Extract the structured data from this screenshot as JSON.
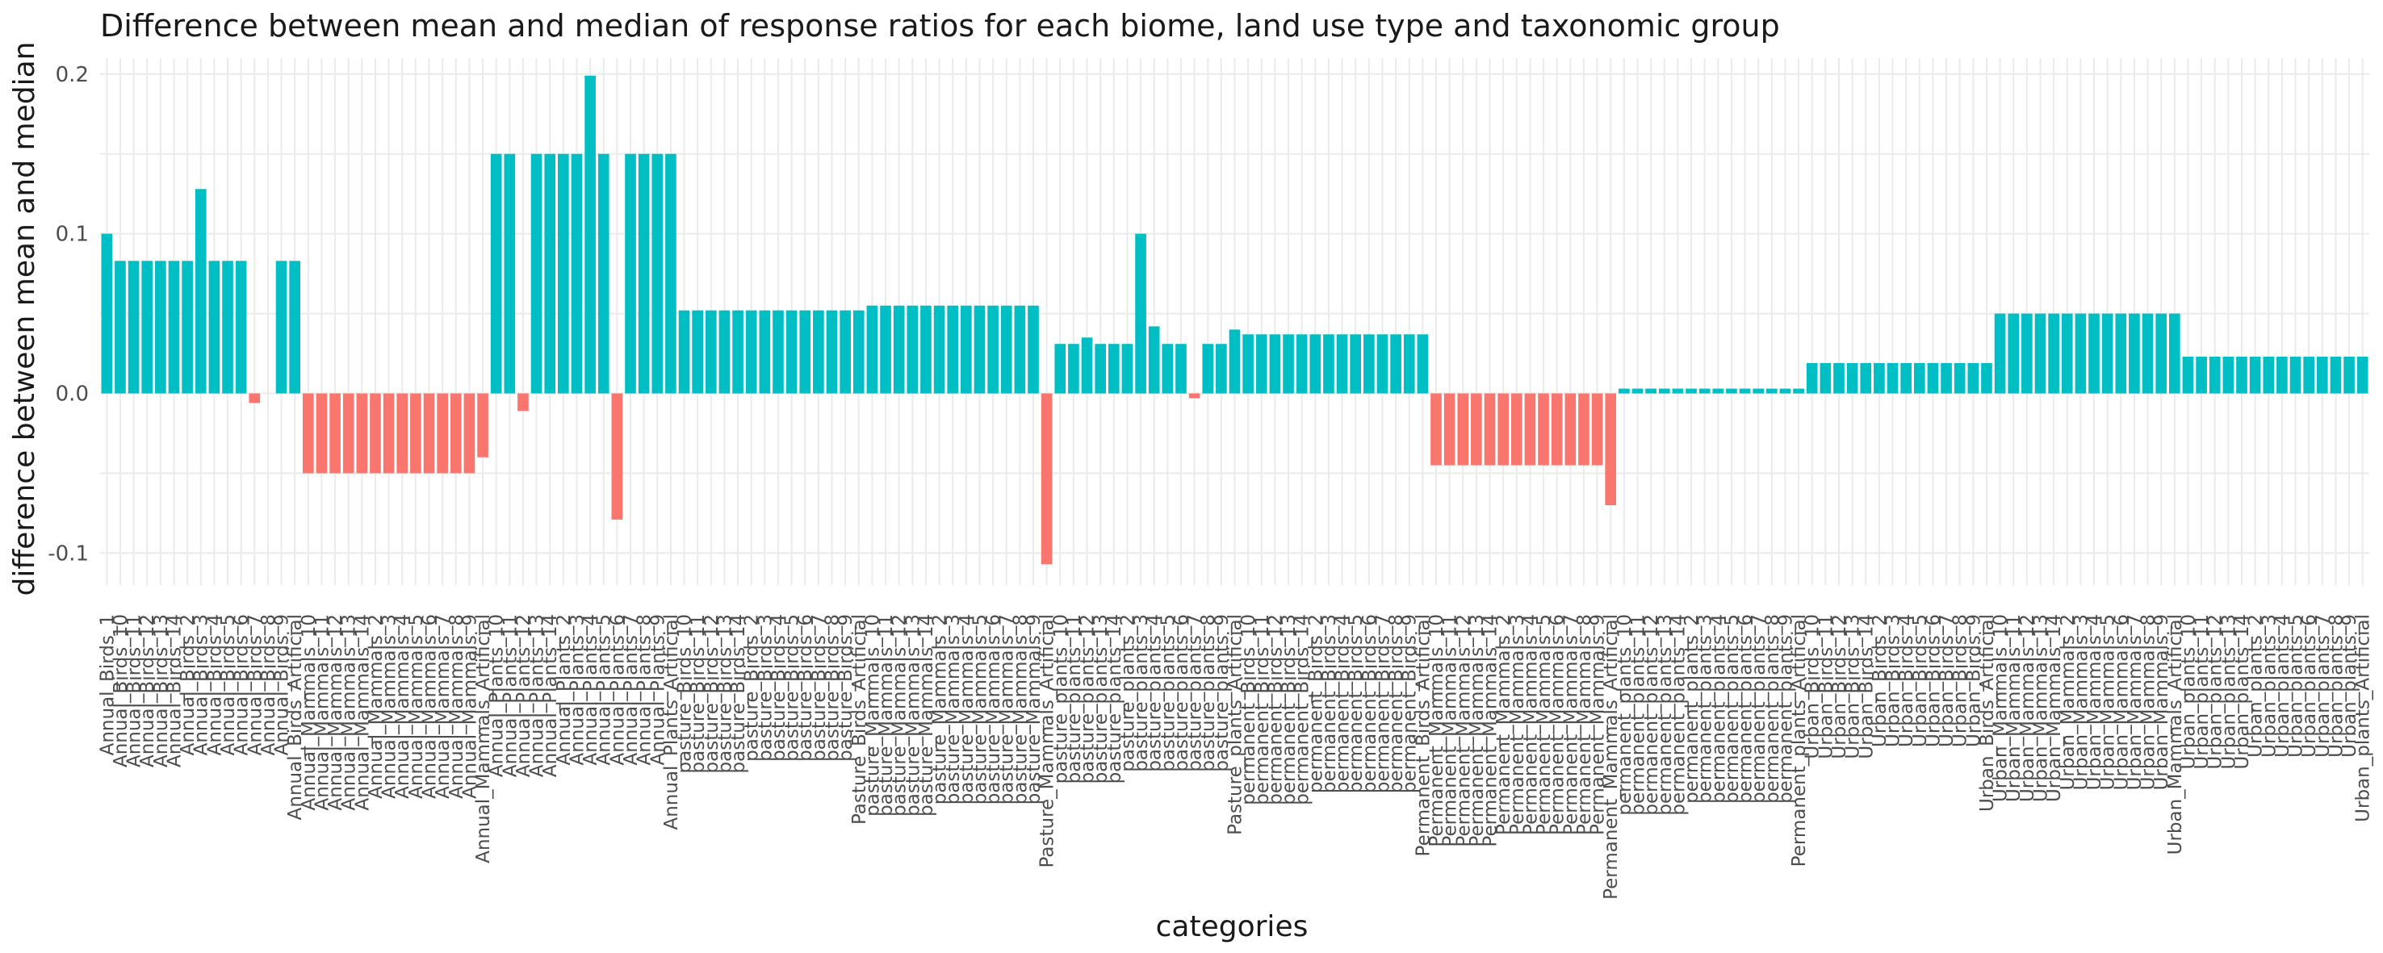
{
  "chart_data": {
    "type": "bar",
    "title": "Difference between mean and median of response ratios for each biome, land use type and taxonomic group",
    "xlabel": "categories",
    "ylabel": "difference between mean and median",
    "ylim": [
      -0.12,
      0.21
    ],
    "yticks": [
      -0.1,
      0.0,
      0.1,
      0.2
    ],
    "ytick_labels": [
      "-0.1",
      "0.0",
      "0.1",
      "0.2"
    ],
    "grid": true,
    "legend": "none",
    "colors": {
      "positive": "#00BFC4",
      "negative": "#F8766D"
    },
    "categories": [
      "Annual_Birds_1",
      "Annual_Birds_10",
      "Annual_Birds_11",
      "Annual_Birds_12",
      "Annual_Birds_13",
      "Annual_Birds_14",
      "Annual_Birds_2",
      "Annual_Birds_3",
      "Annual_Birds_4",
      "Annual_Birds_5",
      "Annual_Birds_6",
      "Annual_Birds_7",
      "Annual_Birds_8",
      "Annual_Birds_9",
      "Annual_Birds_Artificial",
      "Annual_Mammals_10",
      "Annual_Mammals_11",
      "Annual_Mammals_12",
      "Annual_Mammals_13",
      "Annual_Mammals_14",
      "Annual_Mammals_2",
      "Annual_Mammals_3",
      "Annual_Mammals_4",
      "Annual_Mammals_5",
      "Annual_Mammals_6",
      "Annual_Mammals_7",
      "Annual_Mammals_8",
      "Annual_Mammals_9",
      "Annual_Mammals_Artificial",
      "Annual_Plants_10",
      "Annual_Plants_11",
      "Annual_Plants_12",
      "Annual_Plants_13",
      "Annual_Plants_14",
      "Annual_Plants_2",
      "Annual_Plants_3",
      "Annual_Plants_4",
      "Annual_Plants_5",
      "Annual_Plants_6",
      "Annual_Plants_7",
      "Annual_Plants_8",
      "Annual_Plants_9",
      "Annual_Plants_Artificial",
      "pasture_Birds_10",
      "pasture_Birds_11",
      "pasture_Birds_12",
      "pasture_Birds_13",
      "pasture_Birds_14",
      "pasture_Birds_2",
      "pasture_Birds_3",
      "pasture_Birds_4",
      "pasture_Birds_5",
      "pasture_Birds_6",
      "pasture_Birds_7",
      "pasture_Birds_8",
      "pasture_Birds_9",
      "Pasture_Birds_Artificial",
      "pasture_Mammals_10",
      "pasture_Mammals_11",
      "pasture_Mammals_12",
      "pasture_Mammals_13",
      "pasture_Mammals_14",
      "pasture_Mammals_2",
      "pasture_Mammals_3",
      "pasture_Mammals_4",
      "pasture_Mammals_5",
      "pasture_Mammals_6",
      "pasture_Mammals_7",
      "pasture_Mammals_8",
      "pasture_Mammals_9",
      "Pasture_Mammals_Artificial",
      "pasture_plants_10",
      "pasture_plants_11",
      "pasture_plants_12",
      "pasture_plants_13",
      "pasture_plants_14",
      "pasture_plants_2",
      "pasture_plants_3",
      "pasture_plants_4",
      "pasture_plants_5",
      "pasture_plants_6",
      "pasture_plants_7",
      "pasture_plants_8",
      "pasture_plants_9",
      "Pasture_plants_Artificial",
      "permanent_Birds_10",
      "permanent_Birds_11",
      "permanent_Birds_12",
      "permanent_Birds_13",
      "permanent_Birds_14",
      "permanent_Birds_2",
      "permanent_Birds_3",
      "permanent_Birds_4",
      "permanent_Birds_5",
      "permanent_Birds_6",
      "permanent_Birds_7",
      "permanent_Birds_8",
      "permanent_Birds_9",
      "Permanent_Birds_Artificial",
      "Permanent_Mammals_10",
      "Permanent_Mammals_11",
      "Permanent_Mammals_12",
      "Permanent_Mammals_13",
      "Permanent_Mammals_14",
      "Permanent_Mammals_2",
      "Permanent_Mammals_3",
      "Permanent_Mammals_4",
      "Permanent_Mammals_5",
      "Permanent_Mammals_6",
      "Permanent_Mammals_7",
      "Permanent_Mammals_8",
      "Permanent_Mammals_9",
      "Permanent_Mammals_Artificial",
      "permanent_plants_10",
      "permanent_plants_11",
      "permanent_plants_12",
      "permanent_plants_13",
      "permanent_plants_14",
      "permanent_plants_2",
      "permanent_plants_3",
      "permanent_plants_4",
      "permanent_plants_5",
      "permanent_plants_6",
      "permanent_plants_7",
      "permanent_plants_8",
      "permanent_plants_9",
      "Permanent_plants_Artificial",
      "Urban_Birds_10",
      "Urban_Birds_11",
      "Urban_Birds_12",
      "Urban_Birds_13",
      "Urban_Birds_14",
      "Urban_Birds_2",
      "Urban_Birds_3",
      "Urban_Birds_4",
      "Urban_Birds_5",
      "Urban_Birds_6",
      "Urban_Birds_7",
      "Urban_Birds_8",
      "Urban_Birds_9",
      "Urban_Birds_Artificial",
      "Urban_Mammals_10",
      "Urban_Mammals_11",
      "Urban_Mammals_12",
      "Urban_Mammals_13",
      "Urban_Mammals_14",
      "Urban_Mammals_2",
      "Urban_Mammals_3",
      "Urban_Mammals_4",
      "Urban_Mammals_5",
      "Urban_Mammals_6",
      "Urban_Mammals_7",
      "Urban_Mammals_8",
      "Urban_Mammals_9",
      "Urban_Mammals_Artificial",
      "Urban_plants_10",
      "Urban_plants_11",
      "Urban_plants_12",
      "Urban_plants_13",
      "Urban_plants_14",
      "Urban_plants_2",
      "Urban_plants_3",
      "Urban_plants_4",
      "Urban_plants_5",
      "Urban_plants_6",
      "Urban_plants_7",
      "Urban_plants_8",
      "Urban_plants_9",
      "Urban_plants_Artificial"
    ],
    "values": [
      0.1,
      0.083,
      0.083,
      0.083,
      0.083,
      0.083,
      0.083,
      0.128,
      0.083,
      0.083,
      0.083,
      -0.006,
      0.0,
      0.083,
      0.083,
      -0.05,
      -0.05,
      -0.05,
      -0.05,
      -0.05,
      -0.05,
      -0.05,
      -0.05,
      -0.05,
      -0.05,
      -0.05,
      -0.05,
      -0.05,
      -0.04,
      0.15,
      0.15,
      -0.011,
      0.15,
      0.15,
      0.15,
      0.15,
      0.199,
      0.15,
      -0.079,
      0.15,
      0.15,
      0.15,
      0.15,
      0.052,
      0.052,
      0.052,
      0.052,
      0.052,
      0.052,
      0.052,
      0.052,
      0.052,
      0.052,
      0.052,
      0.052,
      0.052,
      0.052,
      0.055,
      0.055,
      0.055,
      0.055,
      0.055,
      0.055,
      0.055,
      0.055,
      0.055,
      0.055,
      0.055,
      0.055,
      0.055,
      -0.107,
      0.031,
      0.031,
      0.035,
      0.031,
      0.031,
      0.031,
      0.1,
      0.042,
      0.031,
      0.031,
      -0.003,
      0.031,
      0.031,
      0.04,
      0.037,
      0.037,
      0.037,
      0.037,
      0.037,
      0.037,
      0.037,
      0.037,
      0.037,
      0.037,
      0.037,
      0.037,
      0.037,
      0.037,
      -0.045,
      -0.045,
      -0.045,
      -0.045,
      -0.045,
      -0.045,
      -0.045,
      -0.045,
      -0.045,
      -0.045,
      -0.045,
      -0.045,
      -0.045,
      -0.07,
      0.003,
      0.003,
      0.003,
      0.003,
      0.003,
      0.003,
      0.003,
      0.003,
      0.003,
      0.003,
      0.003,
      0.003,
      0.003,
      0.003,
      0.019,
      0.019,
      0.019,
      0.019,
      0.019,
      0.019,
      0.019,
      0.019,
      0.019,
      0.019,
      0.019,
      0.019,
      0.019,
      0.019,
      0.05,
      0.05,
      0.05,
      0.05,
      0.05,
      0.05,
      0.05,
      0.05,
      0.05,
      0.05,
      0.05,
      0.05,
      0.05,
      0.05,
      0.023,
      0.023,
      0.023,
      0.023,
      0.023,
      0.023,
      0.023,
      0.023,
      0.023,
      0.023,
      0.023,
      0.023,
      0.023,
      0.023
    ]
  }
}
